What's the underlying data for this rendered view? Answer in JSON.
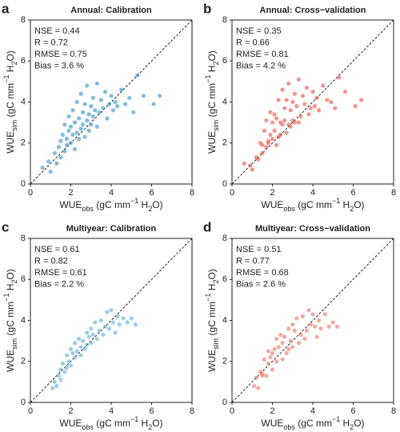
{
  "chart_data": [
    {
      "type": "scatter",
      "panel": "a",
      "title": "Annual: Calibration",
      "annotations": [
        "NSE = 0.44",
        "R = 0.72",
        "RMSE = 0.75",
        "Bias = 3.6 %"
      ],
      "xlabel": [
        {
          "text": "WUE"
        },
        {
          "text": "obs",
          "style": "sub"
        },
        {
          "text": " (gC mm"
        },
        {
          "text": "−1",
          "style": "sup"
        },
        {
          "text": " H"
        },
        {
          "text": "2",
          "style": "sub"
        },
        {
          "text": "O)"
        }
      ],
      "ylabel": [
        {
          "text": "WUE"
        },
        {
          "text": "sim",
          "style": "sub"
        },
        {
          "text": " (gC mm"
        },
        {
          "text": "−1",
          "style": "sup"
        },
        {
          "text": " H"
        },
        {
          "text": "2",
          "style": "sub"
        },
        {
          "text": "O)"
        }
      ],
      "xlim": [
        0,
        8
      ],
      "ylim": [
        0,
        8
      ],
      "xticks": [
        0,
        2,
        4,
        6,
        8
      ],
      "yticks": [
        0,
        2,
        4,
        6,
        8
      ],
      "color": "#2f8fc4",
      "x": [
        0.6,
        0.9,
        1.0,
        1.2,
        1.3,
        1.4,
        1.5,
        1.5,
        1.6,
        1.7,
        1.7,
        1.8,
        1.8,
        1.9,
        1.9,
        2.0,
        2.0,
        2.1,
        2.1,
        2.2,
        2.2,
        2.3,
        2.3,
        2.4,
        2.4,
        2.5,
        2.5,
        2.6,
        2.6,
        2.7,
        2.7,
        2.8,
        2.8,
        2.9,
        2.9,
        3.0,
        3.0,
        3.1,
        3.1,
        3.2,
        3.3,
        3.3,
        3.4,
        3.5,
        3.6,
        3.7,
        3.8,
        3.9,
        4.0,
        4.1,
        4.2,
        4.3,
        4.5,
        4.7,
        4.9,
        5.1,
        5.3,
        5.6,
        6.1,
        6.4
      ],
      "values": [
        0.8,
        1.1,
        0.6,
        1.5,
        1.0,
        1.8,
        2.1,
        1.3,
        2.4,
        1.6,
        2.9,
        2.2,
        1.9,
        2.6,
        3.3,
        2.0,
        2.8,
        2.4,
        3.6,
        1.7,
        3.0,
        2.5,
        4.0,
        2.2,
        3.2,
        2.7,
        4.4,
        2.9,
        3.5,
        2.3,
        3.9,
        3.1,
        4.8,
        2.6,
        3.4,
        3.8,
        2.9,
        4.2,
        3.3,
        3.6,
        4.9,
        2.8,
        3.5,
        4.1,
        3.7,
        4.5,
        3.2,
        3.9,
        4.3,
        3.6,
        4.0,
        3.8,
        4.6,
        3.9,
        4.2,
        3.5,
        5.3,
        4.3,
        3.9,
        4.3
      ]
    },
    {
      "type": "scatter",
      "panel": "b",
      "title": "Annual: Cross−validation",
      "annotations": [
        "NSE = 0.35",
        "R = 0.66",
        "RMSE = 0.81",
        "Bias = 4.2 %"
      ],
      "xlabel": [
        {
          "text": "WUE"
        },
        {
          "text": "obs",
          "style": "sub"
        },
        {
          "text": " (gC mm"
        },
        {
          "text": "−1",
          "style": "sup"
        },
        {
          "text": " H"
        },
        {
          "text": "2",
          "style": "sub"
        },
        {
          "text": "O)"
        }
      ],
      "ylabel": [
        {
          "text": "WUE"
        },
        {
          "text": "sim",
          "style": "sub"
        },
        {
          "text": " (gC mm"
        },
        {
          "text": "−1",
          "style": "sup"
        },
        {
          "text": " H"
        },
        {
          "text": "2",
          "style": "sub"
        },
        {
          "text": "O)"
        }
      ],
      "xlim": [
        0,
        8
      ],
      "ylim": [
        0,
        8
      ],
      "xticks": [
        0,
        2,
        4,
        6,
        8
      ],
      "yticks": [
        0,
        2,
        4,
        6,
        8
      ],
      "color": "#e8503f",
      "x": [
        0.6,
        0.9,
        1.0,
        1.2,
        1.3,
        1.4,
        1.5,
        1.5,
        1.6,
        1.7,
        1.7,
        1.8,
        1.8,
        1.9,
        1.9,
        2.0,
        2.0,
        2.1,
        2.1,
        2.2,
        2.2,
        2.3,
        2.3,
        2.4,
        2.4,
        2.5,
        2.5,
        2.6,
        2.6,
        2.7,
        2.7,
        2.8,
        2.8,
        2.9,
        2.9,
        3.0,
        3.0,
        3.1,
        3.1,
        3.2,
        3.3,
        3.3,
        3.4,
        3.5,
        3.6,
        3.7,
        3.8,
        3.9,
        4.0,
        4.1,
        4.2,
        4.3,
        4.5,
        4.7,
        4.9,
        5.1,
        5.3,
        5.6,
        6.1,
        6.4
      ],
      "values": [
        1.0,
        0.9,
        0.7,
        1.3,
        1.2,
        2.0,
        1.9,
        1.5,
        2.6,
        1.8,
        3.1,
        2.0,
        2.1,
        2.4,
        3.5,
        2.2,
        3.0,
        2.6,
        3.4,
        1.9,
        3.2,
        2.3,
        4.1,
        2.4,
        3.0,
        2.9,
        4.6,
        3.1,
        3.7,
        2.5,
        4.1,
        2.9,
        4.9,
        2.8,
        3.6,
        4.0,
        3.1,
        4.4,
        3.0,
        3.8,
        5.1,
        3.0,
        3.3,
        4.3,
        3.9,
        4.7,
        3.4,
        3.7,
        4.5,
        3.8,
        4.2,
        3.6,
        4.8,
        4.1,
        4.0,
        3.7,
        5.2,
        4.5,
        3.8,
        4.1
      ]
    },
    {
      "type": "scatter",
      "panel": "c",
      "title": "Multiyear: Calibration",
      "annotations": [
        "NSE = 0.61",
        "R = 0.82",
        "RMSE = 0.61",
        "Bias = 2.2 %"
      ],
      "xlabel": [
        {
          "text": "WUE"
        },
        {
          "text": "obs",
          "style": "sub"
        },
        {
          "text": " (gC mm"
        },
        {
          "text": "−1",
          "style": "sup"
        },
        {
          "text": " H"
        },
        {
          "text": "2",
          "style": "sub"
        },
        {
          "text": "O)"
        }
      ],
      "ylabel": [
        {
          "text": "WUE"
        },
        {
          "text": "sim",
          "style": "sub"
        },
        {
          "text": " (gC mm"
        },
        {
          "text": "−1",
          "style": "sup"
        },
        {
          "text": " H"
        },
        {
          "text": "2",
          "style": "sub"
        },
        {
          "text": "O)"
        }
      ],
      "xlim": [
        0,
        8
      ],
      "ylim": [
        0,
        8
      ],
      "xticks": [
        0,
        2,
        4,
        6,
        8
      ],
      "yticks": [
        0,
        2,
        4,
        6,
        8
      ],
      "color": "#5aaed6",
      "x": [
        1.1,
        1.2,
        1.3,
        1.4,
        1.5,
        1.5,
        1.6,
        1.7,
        1.8,
        1.8,
        1.9,
        2.0,
        2.0,
        2.1,
        2.2,
        2.2,
        2.3,
        2.4,
        2.5,
        2.5,
        2.6,
        2.7,
        2.8,
        2.8,
        2.9,
        3.0,
        3.0,
        3.1,
        3.2,
        3.3,
        3.4,
        3.5,
        3.6,
        3.7,
        3.8,
        3.9,
        4.0,
        4.1,
        4.2,
        4.3,
        4.4,
        4.6,
        4.8,
        5.0,
        5.2
      ],
      "values": [
        0.7,
        1.0,
        0.8,
        1.3,
        1.6,
        1.1,
        1.9,
        1.5,
        2.3,
        1.7,
        2.0,
        2.6,
        1.8,
        2.4,
        2.9,
        2.2,
        2.5,
        3.1,
        2.3,
        2.7,
        3.0,
        2.6,
        3.4,
        2.8,
        3.2,
        3.6,
        2.9,
        3.3,
        3.9,
        3.1,
        3.5,
        4.0,
        3.3,
        3.7,
        4.4,
        3.6,
        4.5,
        3.9,
        3.4,
        4.2,
        3.8,
        4.1,
        3.9,
        4.1,
        3.8
      ]
    },
    {
      "type": "scatter",
      "panel": "d",
      "title": "Multiyear: Cross−validation",
      "annotations": [
        "NSE = 0.51",
        "R = 0.77",
        "RMSE = 0.68",
        "Bias = 2.6 %"
      ],
      "xlabel": [
        {
          "text": "WUE"
        },
        {
          "text": "obs",
          "style": "sub"
        },
        {
          "text": " (gC mm"
        },
        {
          "text": "−1",
          "style": "sup"
        },
        {
          "text": " H"
        },
        {
          "text": "2",
          "style": "sub"
        },
        {
          "text": "O)"
        }
      ],
      "ylabel": [
        {
          "text": "WUE"
        },
        {
          "text": "sim",
          "style": "sub"
        },
        {
          "text": " (gC mm"
        },
        {
          "text": "−1",
          "style": "sup"
        },
        {
          "text": " H"
        },
        {
          "text": "2",
          "style": "sub"
        },
        {
          "text": "O)"
        }
      ],
      "xlim": [
        0,
        8
      ],
      "ylim": [
        0,
        8
      ],
      "xticks": [
        0,
        2,
        4,
        6,
        8
      ],
      "yticks": [
        0,
        2,
        4,
        6,
        8
      ],
      "color": "#ee6f63",
      "x": [
        1.1,
        1.2,
        1.3,
        1.4,
        1.5,
        1.5,
        1.6,
        1.7,
        1.8,
        1.8,
        1.9,
        2.0,
        2.0,
        2.1,
        2.2,
        2.2,
        2.3,
        2.4,
        2.5,
        2.5,
        2.6,
        2.7,
        2.8,
        2.8,
        2.9,
        3.0,
        3.0,
        3.1,
        3.2,
        3.3,
        3.4,
        3.5,
        3.6,
        3.7,
        3.8,
        3.9,
        4.0,
        4.1,
        4.2,
        4.3,
        4.4,
        4.6,
        4.8,
        5.0,
        5.2
      ],
      "values": [
        0.8,
        1.2,
        0.7,
        1.5,
        1.4,
        1.3,
        2.1,
        1.3,
        2.5,
        1.9,
        2.2,
        2.4,
        1.6,
        2.6,
        3.1,
        2.0,
        2.7,
        3.3,
        2.1,
        2.9,
        3.2,
        2.4,
        3.6,
        2.6,
        3.0,
        3.8,
        2.7,
        3.5,
        4.1,
        2.9,
        3.3,
        4.2,
        3.1,
        3.5,
        4.5,
        3.8,
        4.3,
        3.7,
        3.2,
        4.0,
        3.6,
        4.3,
        3.7,
        3.9,
        3.7
      ]
    }
  ]
}
